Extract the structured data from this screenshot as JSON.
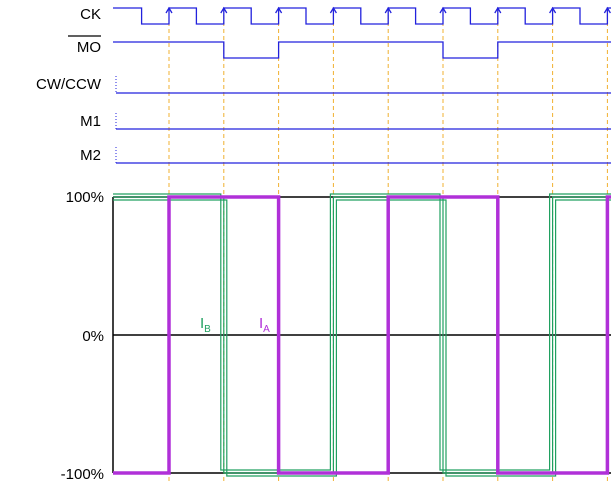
{
  "signals": [
    {
      "label": "CK",
      "overline": false
    },
    {
      "label": "MO",
      "overline": true
    },
    {
      "label": "CW/CCW",
      "overline": false
    },
    {
      "label": "M1",
      "overline": false
    },
    {
      "label": "M2",
      "overline": false
    }
  ],
  "timing": {
    "clock_periods": 9,
    "mo_low_periods": [
      2,
      6
    ],
    "mode_inputs_constant": true
  },
  "current_axis": {
    "ticks": [
      "100%",
      "0%",
      "-100%"
    ],
    "values": [
      100,
      0,
      -100
    ]
  },
  "current_waveforms": {
    "IA": {
      "name": "I",
      "sub": "A",
      "levels_per_period": [
        -100,
        100,
        100,
        -100,
        -100,
        100,
        100,
        -100,
        -100,
        100
      ]
    },
    "IB": {
      "name": "I",
      "sub": "B",
      "levels_per_period": [
        100,
        100,
        -100,
        -100,
        100,
        100,
        -100,
        -100,
        100,
        100
      ]
    }
  },
  "colors": {
    "signal_line": "#2222dd",
    "clock_guide": "#f0b030",
    "axis": "#000000",
    "IA": "#b030d8",
    "IB": "#20a060"
  }
}
